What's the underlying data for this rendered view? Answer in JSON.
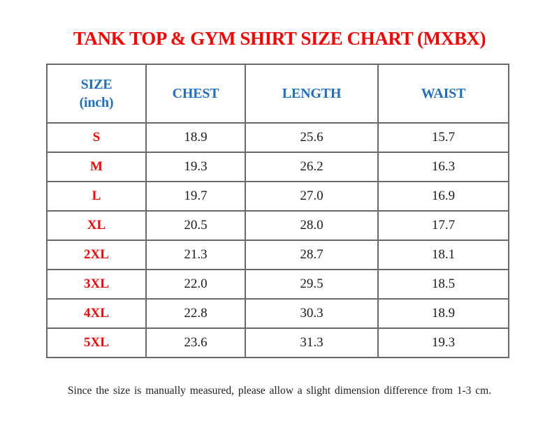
{
  "page": {
    "title": "TANK TOP & GYM SHIRT SIZE CHART (MXBX)",
    "footnote": "Since the size is manually measured, please allow a slight dimension difference from 1-3 cm."
  },
  "colors": {
    "title_red": "#fe0000",
    "header_blue": "#1d6fc5",
    "size_label_red": "#fe0000",
    "value_black": "#1a1a1a",
    "border_gray": "#6a6a6a",
    "background": "#ffffff"
  },
  "table": {
    "headers": [
      {
        "label": "SIZE (inch)",
        "line1": "SIZE",
        "line2": "(inch)"
      },
      {
        "label": "CHEST"
      },
      {
        "label": "LENGTH"
      },
      {
        "label": "WAIST"
      }
    ],
    "rows": [
      {
        "size": "S",
        "chest": "18.9",
        "length": "25.6",
        "waist": "15.7"
      },
      {
        "size": "M",
        "chest": "19.3",
        "length": "26.2",
        "waist": "16.3"
      },
      {
        "size": "L",
        "chest": "19.7",
        "length": "27.0",
        "waist": "16.9"
      },
      {
        "size": "XL",
        "chest": "20.5",
        "length": "28.0",
        "waist": "17.7"
      },
      {
        "size": "2XL",
        "chest": "21.3",
        "length": "28.7",
        "waist": "18.1"
      },
      {
        "size": "3XL",
        "chest": "22.0",
        "length": "29.5",
        "waist": "18.5"
      },
      {
        "size": "4XL",
        "chest": "22.8",
        "length": "30.3",
        "waist": "18.9"
      },
      {
        "size": "5XL",
        "chest": "23.6",
        "length": "31.3",
        "waist": "19.3"
      }
    ]
  },
  "chart_data": {
    "type": "table",
    "title": "TANK TOP & GYM SHIRT SIZE CHART (MXBX)",
    "unit": "inch",
    "columns": [
      "SIZE (inch)",
      "CHEST",
      "LENGTH",
      "WAIST"
    ],
    "rows": [
      [
        "S",
        18.9,
        25.6,
        15.7
      ],
      [
        "M",
        19.3,
        26.2,
        16.3
      ],
      [
        "L",
        19.7,
        27.0,
        16.9
      ],
      [
        "XL",
        20.5,
        28.0,
        17.7
      ],
      [
        "2XL",
        21.3,
        28.7,
        18.1
      ],
      [
        "3XL",
        22.0,
        29.5,
        18.5
      ],
      [
        "4XL",
        22.8,
        30.3,
        18.9
      ],
      [
        "5XL",
        23.6,
        31.3,
        19.3
      ]
    ],
    "note": "Since the size is manually measured, please allow a slight dimension difference from 1-3 cm."
  }
}
